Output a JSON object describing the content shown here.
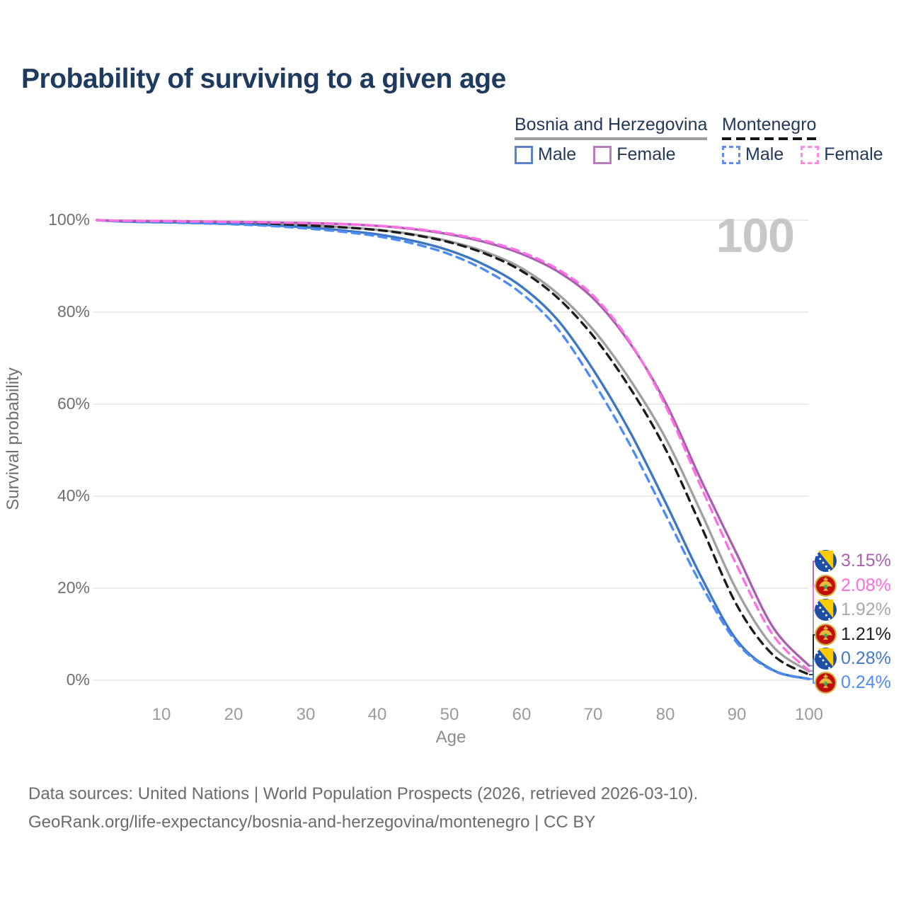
{
  "title": "Probability of surviving to a given age",
  "watermark_age": "100",
  "legend": {
    "groups": [
      {
        "label": "Bosnia and Herzegovina",
        "line_style": "solid",
        "rule_color": "#9e9e9e",
        "items": [
          {
            "label": "Male",
            "color": "#5b84c8"
          },
          {
            "label": "Female",
            "color": "#bb7cbd"
          }
        ]
      },
      {
        "label": "Montenegro",
        "line_style": "dashed",
        "rule_color": "#161616",
        "items": [
          {
            "label": "Male",
            "color": "#5f8ff2"
          },
          {
            "label": "Female",
            "color": "#ff8ae6"
          }
        ]
      }
    ]
  },
  "axes": {
    "y_title": "Survival probability",
    "x_title": "Age",
    "y_ticks": [
      "100%",
      "80%",
      "60%",
      "40%",
      "20%",
      "0%"
    ],
    "x_ticks": [
      "10",
      "20",
      "30",
      "40",
      "50",
      "60",
      "70",
      "80",
      "90",
      "100"
    ]
  },
  "end_labels": [
    {
      "series": "bih_female",
      "flag": "bosnia-and-herzegovina",
      "value": "3.15%",
      "color": "#a963ae"
    },
    {
      "series": "mne_female",
      "flag": "montenegro",
      "value": "2.08%",
      "color": "#ff6ce0"
    },
    {
      "series": "bih_total",
      "flag": "bosnia-and-herzegovina",
      "value": "1.92%",
      "color": "#a8a8a8"
    },
    {
      "series": "mne_total",
      "flag": "montenegro",
      "value": "1.21%",
      "color": "#1f1f1f"
    },
    {
      "series": "bih_male",
      "flag": "bosnia-and-herzegovina",
      "value": "0.28%",
      "color": "#4379c6"
    },
    {
      "series": "mne_male",
      "flag": "montenegro",
      "value": "0.24%",
      "color": "#4f8df2"
    }
  ],
  "footer": {
    "line1": "Data sources: United Nations | World Population Prospects (2026, retrieved 2026-03-10).",
    "line2": "GeoRank.org/life-expectancy/bosnia-and-herzegovina/montenegro | CC BY"
  },
  "chart_data": {
    "type": "line",
    "title": "Probability of surviving to a given age",
    "xlabel": "Age",
    "ylabel": "Survival probability",
    "x_range": [
      1,
      100
    ],
    "y_range_percent": [
      0,
      100
    ],
    "grid": "horizontal",
    "gridline_percents": [
      0,
      20,
      40,
      60,
      80,
      100
    ],
    "legend_position": "top-right",
    "x": [
      1,
      5,
      10,
      15,
      20,
      25,
      30,
      35,
      40,
      45,
      50,
      55,
      60,
      65,
      70,
      75,
      80,
      85,
      90,
      95,
      100
    ],
    "series": [
      {
        "key": "bih_total",
        "name": "Bosnia and Herzegovina — Total",
        "color": "#a0a0a0",
        "dash": false,
        "values": [
          100,
          99.75,
          99.65,
          99.55,
          99.42,
          99.22,
          98.92,
          98.5,
          97.9,
          96.9,
          95.4,
          93.1,
          89.6,
          84.1,
          76.2,
          65.6,
          52.8,
          36.5,
          19.4,
          7.3,
          1.92
        ]
      },
      {
        "key": "bih_male",
        "name": "Bosnia and Herzegovina — Male",
        "color": "#3d76c2",
        "dash": false,
        "values": [
          100,
          99.68,
          99.55,
          99.4,
          99.2,
          98.9,
          98.45,
          97.8,
          96.9,
          95.5,
          93.4,
          90.2,
          85.6,
          78.4,
          67.5,
          54.3,
          38.8,
          22.5,
          8.6,
          2.2,
          0.28
        ]
      },
      {
        "key": "bih_female",
        "name": "Bosnia and Herzegovina — Female",
        "color": "#a95fb0",
        "dash": false,
        "values": [
          100,
          99.85,
          99.8,
          99.72,
          99.63,
          99.52,
          99.38,
          99.15,
          98.75,
          98.05,
          96.9,
          95.2,
          92.7,
          88.9,
          83.0,
          73.5,
          60.5,
          43.5,
          27.3,
          11.5,
          3.15
        ]
      },
      {
        "key": "mne_total",
        "name": "Montenegro — Total",
        "color": "#1c1c1c",
        "dash": true,
        "values": [
          100,
          99.75,
          99.65,
          99.52,
          99.38,
          99.18,
          98.88,
          98.45,
          97.85,
          96.8,
          95.2,
          92.7,
          89.0,
          83.2,
          74.8,
          63.8,
          50.4,
          33.5,
          16.2,
          5.5,
          1.21
        ]
      },
      {
        "key": "mne_male",
        "name": "Montenegro — Male",
        "color": "#4e8cf5",
        "dash": true,
        "values": [
          100,
          99.66,
          99.5,
          99.32,
          99.1,
          98.75,
          98.2,
          97.5,
          96.5,
          94.9,
          92.6,
          89.1,
          84.1,
          76.5,
          64.9,
          51.5,
          36.2,
          20.8,
          8.1,
          2.1,
          0.24
        ]
      },
      {
        "key": "mne_female",
        "name": "Montenegro — Female",
        "color": "#ff70e4",
        "dash": true,
        "values": [
          100,
          99.85,
          99.8,
          99.7,
          99.6,
          99.5,
          99.36,
          99.17,
          98.8,
          98.15,
          97.1,
          95.5,
          93.1,
          89.4,
          83.6,
          73.8,
          59.8,
          42.0,
          24.8,
          9.8,
          2.08
        ]
      }
    ]
  }
}
